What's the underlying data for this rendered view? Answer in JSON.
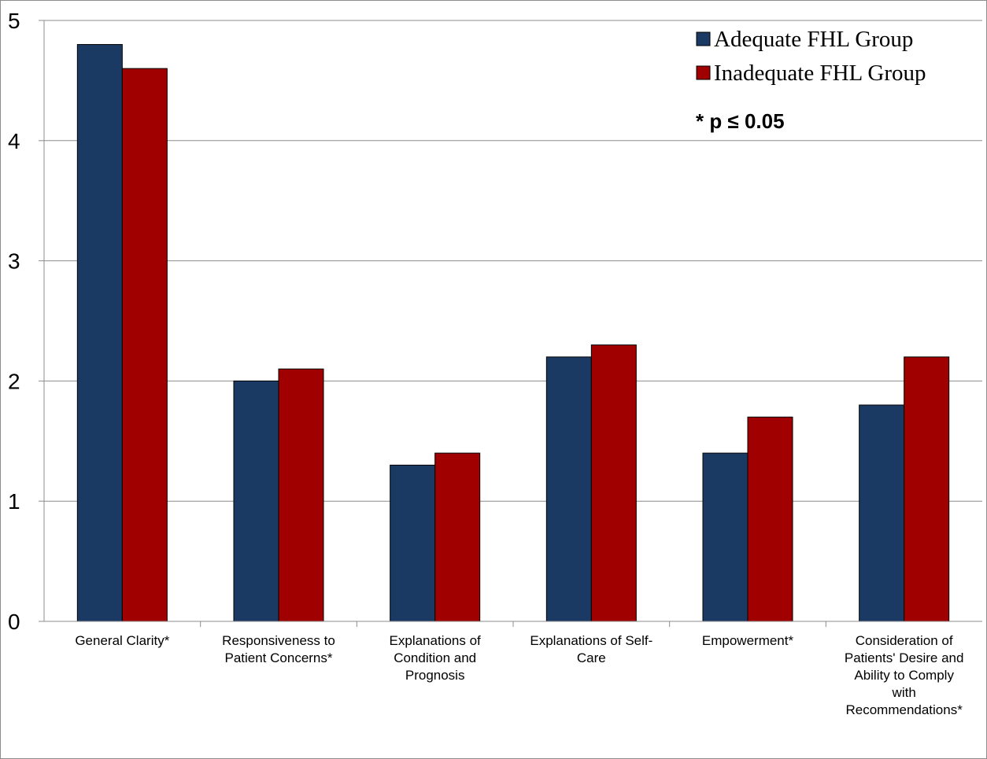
{
  "chart_data": {
    "type": "bar",
    "categories": [
      "General Clarity*",
      "Responsiveness to Patient Concerns*",
      "Explanations of Condition and Prognosis",
      "Explanations of Self-Care",
      "Empowerment*",
      "Consideration of Patients' Desire and Ability to Comply with Recommendations*"
    ],
    "category_label_lines": [
      [
        "General Clarity*"
      ],
      [
        "Responsiveness to",
        "Patient Concerns*"
      ],
      [
        "Explanations of",
        "Condition and",
        "Prognosis"
      ],
      [
        "Explanations of Self-",
        "Care"
      ],
      [
        "Empowerment*"
      ],
      [
        "Consideration of",
        "Patients' Desire and",
        "Ability to Comply",
        "with",
        "Recommendations*"
      ]
    ],
    "series": [
      {
        "name": "Adequate FHL Group",
        "values": [
          4.8,
          2.0,
          1.3,
          2.2,
          1.4,
          1.8
        ],
        "color": "#1b3a63"
      },
      {
        "name": "Inadequate FHL Group",
        "values": [
          4.6,
          2.1,
          1.4,
          2.3,
          1.7,
          2.2
        ],
        "color": "#a10000"
      }
    ],
    "ylim": [
      0,
      5
    ],
    "yticks": [
      "0",
      "1",
      "2",
      "3",
      "4",
      "5"
    ],
    "grid": true,
    "legend_position": "top-right",
    "annotation": "*  p ≤ 0.05",
    "title": "",
    "xlabel": "",
    "ylabel": ""
  }
}
